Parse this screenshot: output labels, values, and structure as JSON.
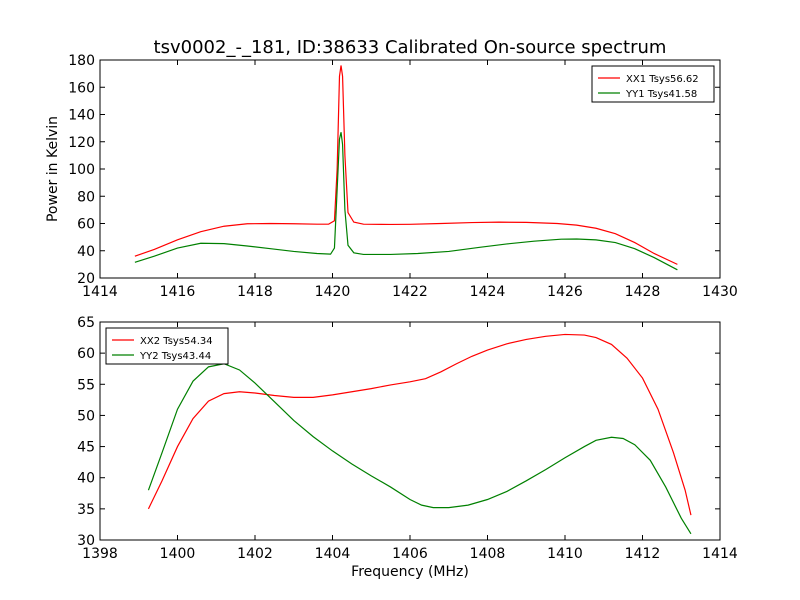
{
  "chart_data": [
    {
      "type": "line",
      "title": "tsv0002_-_181, ID:38633 Calibrated On-source spectrum",
      "xlabel": "",
      "ylabel": "Power in Kelvin",
      "xlim": [
        1414,
        1430
      ],
      "ylim": [
        20,
        180
      ],
      "xticks": [
        1414,
        1416,
        1418,
        1420,
        1422,
        1424,
        1426,
        1428,
        1430
      ],
      "yticks": [
        20,
        40,
        60,
        80,
        100,
        120,
        140,
        160,
        180
      ],
      "grid": false,
      "legend_position": "top-right",
      "series": [
        {
          "name": "XX1 Tsys56.62",
          "color": "#ff0000",
          "points": [
            [
              1414.9,
              36
            ],
            [
              1415.4,
              41
            ],
            [
              1416.0,
              48
            ],
            [
              1416.6,
              54
            ],
            [
              1417.2,
              58
            ],
            [
              1417.8,
              59.8
            ],
            [
              1418.4,
              60
            ],
            [
              1419.0,
              59.8
            ],
            [
              1419.6,
              59.5
            ],
            [
              1419.9,
              59.5
            ],
            [
              1420.05,
              62
            ],
            [
              1420.12,
              100
            ],
            [
              1420.18,
              168
            ],
            [
              1420.22,
              176
            ],
            [
              1420.26,
              168
            ],
            [
              1420.32,
              110
            ],
            [
              1420.4,
              68
            ],
            [
              1420.55,
              61
            ],
            [
              1420.8,
              59.5
            ],
            [
              1421.5,
              59.3
            ],
            [
              1422.0,
              59.4
            ],
            [
              1422.8,
              60
            ],
            [
              1423.6,
              60.7
            ],
            [
              1424.3,
              61
            ],
            [
              1425.0,
              60.8
            ],
            [
              1425.8,
              60
            ],
            [
              1426.3,
              58.8
            ],
            [
              1426.8,
              56.5
            ],
            [
              1427.3,
              52.5
            ],
            [
              1427.8,
              46
            ],
            [
              1428.3,
              38
            ],
            [
              1428.9,
              30
            ]
          ]
        },
        {
          "name": "YY1 Tsys41.58",
          "color": "#008000",
          "points": [
            [
              1414.9,
              31.5
            ],
            [
              1415.4,
              36
            ],
            [
              1416.0,
              42
            ],
            [
              1416.6,
              45.5
            ],
            [
              1417.2,
              45.2
            ],
            [
              1417.8,
              43.5
            ],
            [
              1418.4,
              41.5
            ],
            [
              1419.0,
              39.5
            ],
            [
              1419.6,
              38
            ],
            [
              1419.95,
              37.5
            ],
            [
              1420.05,
              42
            ],
            [
              1420.12,
              85
            ],
            [
              1420.18,
              122
            ],
            [
              1420.22,
              127
            ],
            [
              1420.26,
              118
            ],
            [
              1420.32,
              70
            ],
            [
              1420.4,
              44
            ],
            [
              1420.55,
              38.5
            ],
            [
              1420.8,
              37.3
            ],
            [
              1421.5,
              37.3
            ],
            [
              1422.2,
              38
            ],
            [
              1423.0,
              39.5
            ],
            [
              1423.8,
              42.5
            ],
            [
              1424.5,
              45
            ],
            [
              1425.2,
              47
            ],
            [
              1425.9,
              48.5
            ],
            [
              1426.3,
              48.6
            ],
            [
              1426.8,
              48
            ],
            [
              1427.3,
              46
            ],
            [
              1427.8,
              41.5
            ],
            [
              1428.3,
              35
            ],
            [
              1428.9,
              26
            ]
          ]
        }
      ]
    },
    {
      "type": "line",
      "title": "",
      "xlabel": "Frequency (MHz)",
      "ylabel": "",
      "xlim": [
        1398,
        1414
      ],
      "ylim": [
        30,
        65
      ],
      "xticks": [
        1398,
        1400,
        1402,
        1404,
        1406,
        1408,
        1410,
        1412,
        1414
      ],
      "yticks": [
        30,
        35,
        40,
        45,
        50,
        55,
        60,
        65
      ],
      "grid": false,
      "legend_position": "top-left",
      "series": [
        {
          "name": "XX2 Tsys54.34",
          "color": "#ff0000",
          "points": [
            [
              1399.25,
              35
            ],
            [
              1399.6,
              39.5
            ],
            [
              1400.0,
              45
            ],
            [
              1400.4,
              49.5
            ],
            [
              1400.8,
              52.3
            ],
            [
              1401.2,
              53.5
            ],
            [
              1401.6,
              53.8
            ],
            [
              1402.0,
              53.6
            ],
            [
              1402.5,
              53.2
            ],
            [
              1403.0,
              52.9
            ],
            [
              1403.5,
              52.9
            ],
            [
              1404.0,
              53.3
            ],
            [
              1404.5,
              53.8
            ],
            [
              1405.0,
              54.3
            ],
            [
              1405.5,
              54.9
            ],
            [
              1406.0,
              55.4
            ],
            [
              1406.4,
              55.9
            ],
            [
              1406.8,
              57
            ],
            [
              1407.2,
              58.3
            ],
            [
              1407.6,
              59.5
            ],
            [
              1408.0,
              60.5
            ],
            [
              1408.5,
              61.5
            ],
            [
              1409.0,
              62.2
            ],
            [
              1409.5,
              62.7
            ],
            [
              1410.0,
              63
            ],
            [
              1410.5,
              62.9
            ],
            [
              1410.8,
              62.5
            ],
            [
              1411.2,
              61.4
            ],
            [
              1411.6,
              59.2
            ],
            [
              1412.0,
              56
            ],
            [
              1412.4,
              51
            ],
            [
              1412.8,
              44
            ],
            [
              1413.1,
              38
            ],
            [
              1413.25,
              34
            ]
          ]
        },
        {
          "name": "YY2 Tsys43.44",
          "color": "#008000",
          "points": [
            [
              1399.25,
              38
            ],
            [
              1399.6,
              44
            ],
            [
              1400.0,
              51
            ],
            [
              1400.4,
              55.5
            ],
            [
              1400.8,
              57.8
            ],
            [
              1401.2,
              58.3
            ],
            [
              1401.6,
              57.3
            ],
            [
              1402.0,
              55.2
            ],
            [
              1402.5,
              52.2
            ],
            [
              1403.0,
              49.2
            ],
            [
              1403.5,
              46.6
            ],
            [
              1404.0,
              44.3
            ],
            [
              1404.5,
              42.2
            ],
            [
              1405.0,
              40.3
            ],
            [
              1405.5,
              38.5
            ],
            [
              1406.0,
              36.5
            ],
            [
              1406.3,
              35.6
            ],
            [
              1406.6,
              35.2
            ],
            [
              1407.0,
              35.2
            ],
            [
              1407.5,
              35.6
            ],
            [
              1408.0,
              36.5
            ],
            [
              1408.5,
              37.8
            ],
            [
              1409.0,
              39.5
            ],
            [
              1409.5,
              41.3
            ],
            [
              1410.0,
              43.2
            ],
            [
              1410.5,
              45
            ],
            [
              1410.8,
              46
            ],
            [
              1411.2,
              46.5
            ],
            [
              1411.5,
              46.3
            ],
            [
              1411.8,
              45.3
            ],
            [
              1412.2,
              42.8
            ],
            [
              1412.6,
              38.5
            ],
            [
              1413.0,
              33.5
            ],
            [
              1413.25,
              31
            ]
          ]
        }
      ]
    }
  ]
}
